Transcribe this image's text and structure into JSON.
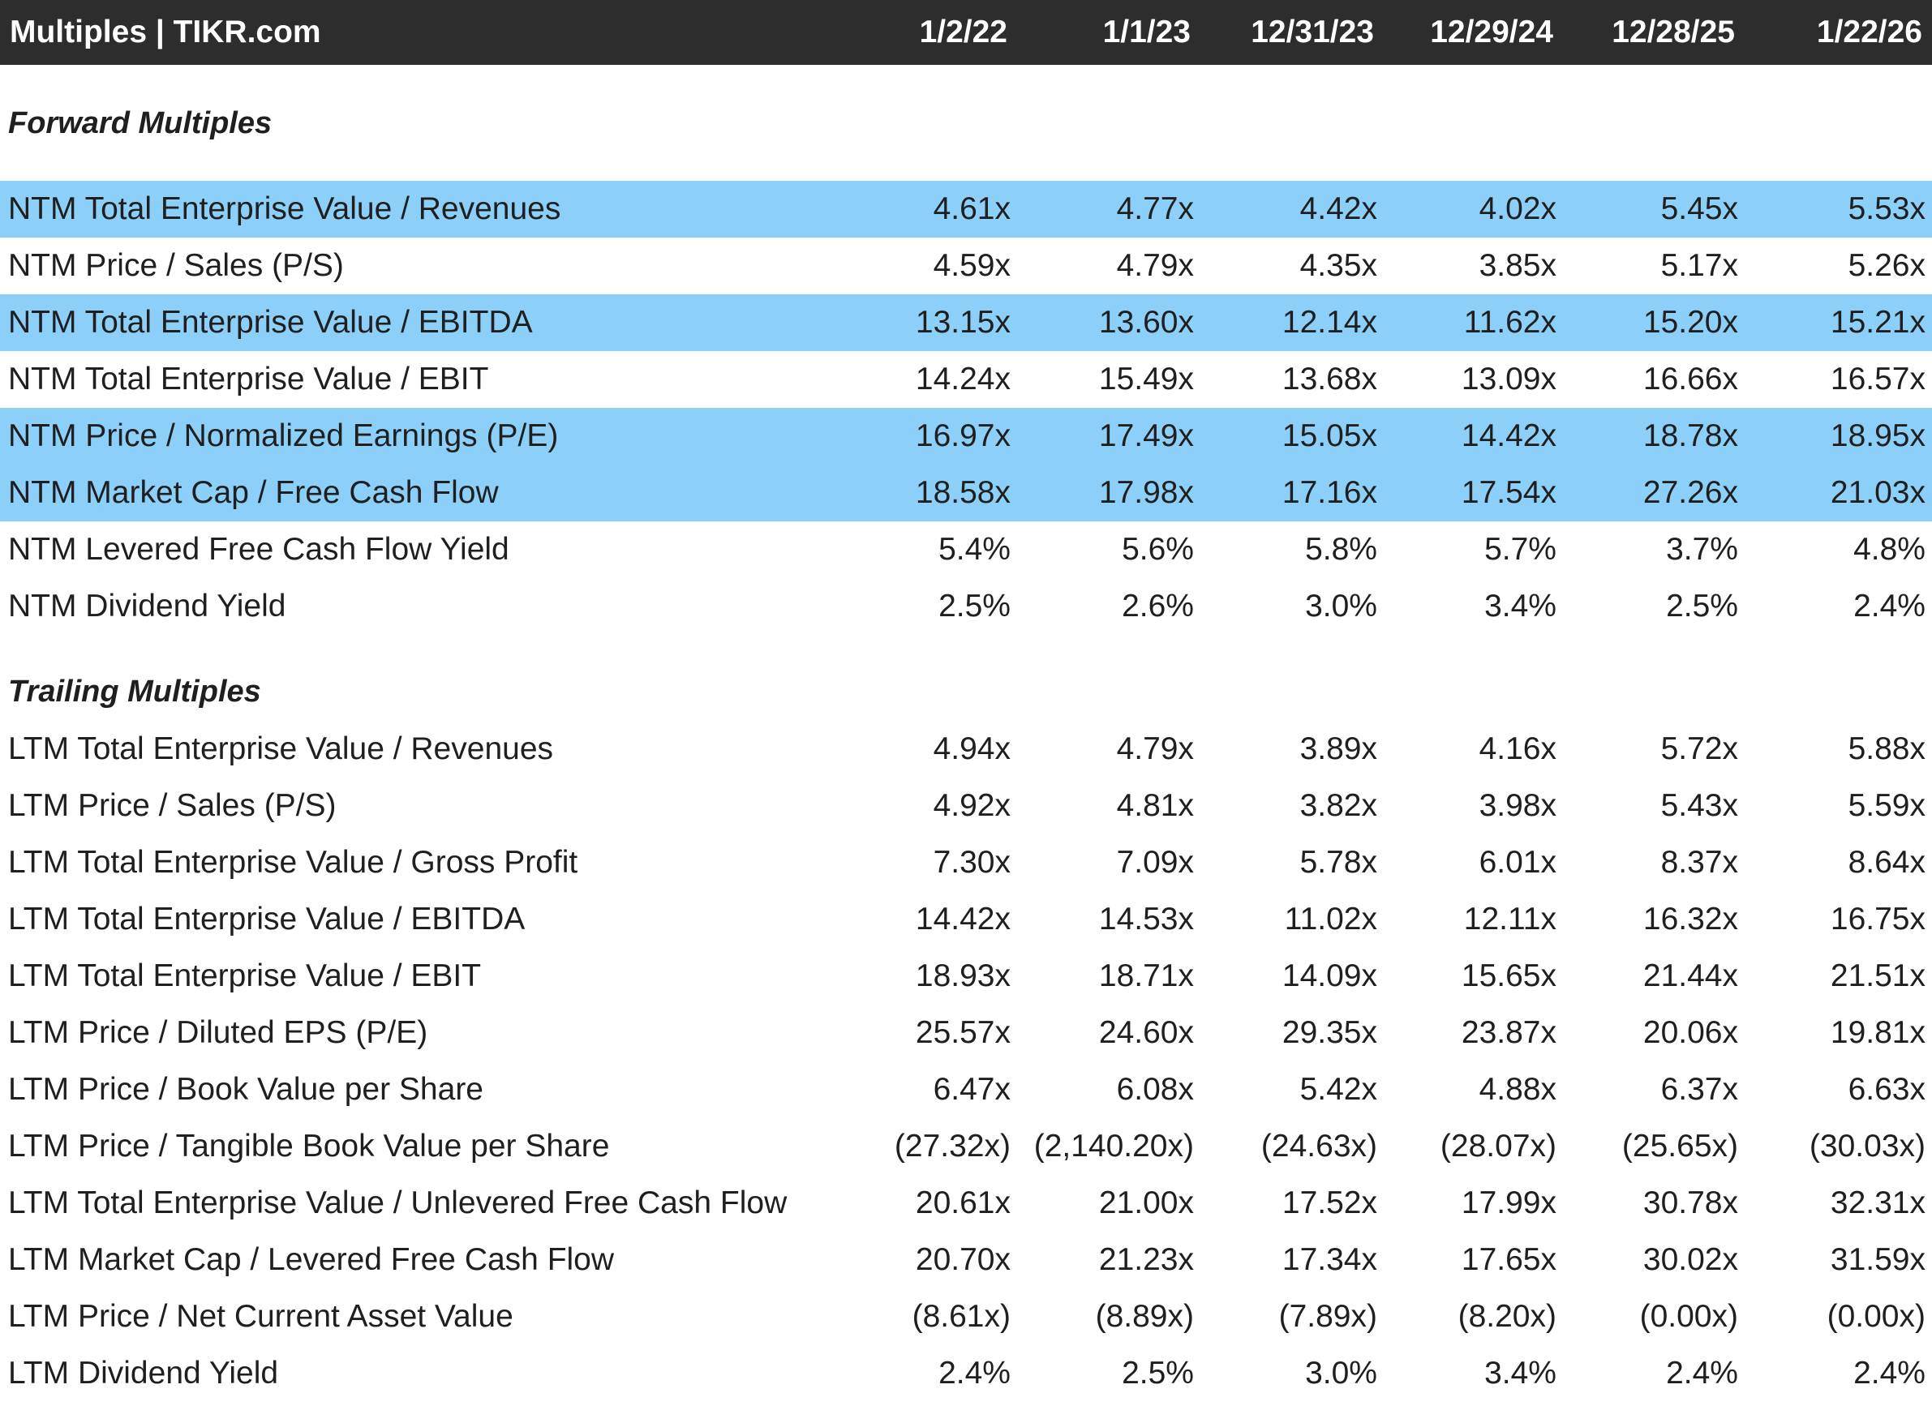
{
  "header": {
    "title": "Multiples | TIKR.com",
    "dates": [
      "1/2/22",
      "1/1/23",
      "12/31/23",
      "12/29/24",
      "12/28/25",
      "1/22/26"
    ]
  },
  "forward": {
    "title": "Forward Multiples",
    "rows": [
      {
        "label": "NTM Total Enterprise Value / Revenues",
        "values": [
          "4.61x",
          "4.77x",
          "4.42x",
          "4.02x",
          "5.45x",
          "5.53x"
        ],
        "highlight": true
      },
      {
        "label": "NTM Price / Sales (P/S)",
        "values": [
          "4.59x",
          "4.79x",
          "4.35x",
          "3.85x",
          "5.17x",
          "5.26x"
        ],
        "highlight": false
      },
      {
        "label": "NTM Total Enterprise Value / EBITDA",
        "values": [
          "13.15x",
          "13.60x",
          "12.14x",
          "11.62x",
          "15.20x",
          "15.21x"
        ],
        "highlight": true
      },
      {
        "label": "NTM Total Enterprise Value / EBIT",
        "values": [
          "14.24x",
          "15.49x",
          "13.68x",
          "13.09x",
          "16.66x",
          "16.57x"
        ],
        "highlight": false
      },
      {
        "label": "NTM Price / Normalized Earnings (P/E)",
        "values": [
          "16.97x",
          "17.49x",
          "15.05x",
          "14.42x",
          "18.78x",
          "18.95x"
        ],
        "highlight": true
      },
      {
        "label": "NTM Market Cap / Free Cash Flow",
        "values": [
          "18.58x",
          "17.98x",
          "17.16x",
          "17.54x",
          "27.26x",
          "21.03x"
        ],
        "highlight": true
      },
      {
        "label": "NTM Levered Free Cash Flow Yield",
        "values": [
          "5.4%",
          "5.6%",
          "5.8%",
          "5.7%",
          "3.7%",
          "4.8%"
        ],
        "highlight": false
      },
      {
        "label": "NTM Dividend Yield",
        "values": [
          "2.5%",
          "2.6%",
          "3.0%",
          "3.4%",
          "2.5%",
          "2.4%"
        ],
        "highlight": false
      }
    ]
  },
  "trailing": {
    "title": "Trailing Multiples",
    "rows": [
      {
        "label": "LTM Total Enterprise Value / Revenues",
        "values": [
          "4.94x",
          "4.79x",
          "3.89x",
          "4.16x",
          "5.72x",
          "5.88x"
        ],
        "highlight": false
      },
      {
        "label": "LTM Price / Sales (P/S)",
        "values": [
          "4.92x",
          "4.81x",
          "3.82x",
          "3.98x",
          "5.43x",
          "5.59x"
        ],
        "highlight": false
      },
      {
        "label": "LTM Total Enterprise Value / Gross Profit",
        "values": [
          "7.30x",
          "7.09x",
          "5.78x",
          "6.01x",
          "8.37x",
          "8.64x"
        ],
        "highlight": false
      },
      {
        "label": "LTM Total Enterprise Value / EBITDA",
        "values": [
          "14.42x",
          "14.53x",
          "11.02x",
          "12.11x",
          "16.32x",
          "16.75x"
        ],
        "highlight": false
      },
      {
        "label": "LTM Total Enterprise Value / EBIT",
        "values": [
          "18.93x",
          "18.71x",
          "14.09x",
          "15.65x",
          "21.44x",
          "21.51x"
        ],
        "highlight": false
      },
      {
        "label": "LTM Price / Diluted EPS (P/E)",
        "values": [
          "25.57x",
          "24.60x",
          "29.35x",
          "23.87x",
          "20.06x",
          "19.81x"
        ],
        "highlight": false
      },
      {
        "label": "LTM Price / Book Value per Share",
        "values": [
          "6.47x",
          "6.08x",
          "5.42x",
          "4.88x",
          "6.37x",
          "6.63x"
        ],
        "highlight": false
      },
      {
        "label": "LTM Price / Tangible Book Value per Share",
        "values": [
          "(27.32x)",
          "(2,140.20x)",
          "(24.63x)",
          "(28.07x)",
          "(25.65x)",
          "(30.03x)"
        ],
        "highlight": false
      },
      {
        "label": "LTM Total Enterprise Value / Unlevered Free Cash Flow",
        "values": [
          "20.61x",
          "21.00x",
          "17.52x",
          "17.99x",
          "30.78x",
          "32.31x"
        ],
        "highlight": false
      },
      {
        "label": "LTM Market Cap / Levered Free Cash Flow",
        "values": [
          "20.70x",
          "21.23x",
          "17.34x",
          "17.65x",
          "30.02x",
          "31.59x"
        ],
        "highlight": false
      },
      {
        "label": "LTM Price / Net Current Asset Value",
        "values": [
          "(8.61x)",
          "(8.89x)",
          "(7.89x)",
          "(8.20x)",
          "(0.00x)",
          "(0.00x)"
        ],
        "highlight": false
      },
      {
        "label": "LTM Dividend Yield",
        "values": [
          "2.4%",
          "2.5%",
          "3.0%",
          "3.4%",
          "2.4%",
          "2.4%"
        ],
        "highlight": false
      }
    ]
  },
  "colors": {
    "header_bg": "#2d2d2d",
    "header_text": "#ffffff",
    "highlight_row": "#8ccff9",
    "text": "#1f1f1f"
  }
}
